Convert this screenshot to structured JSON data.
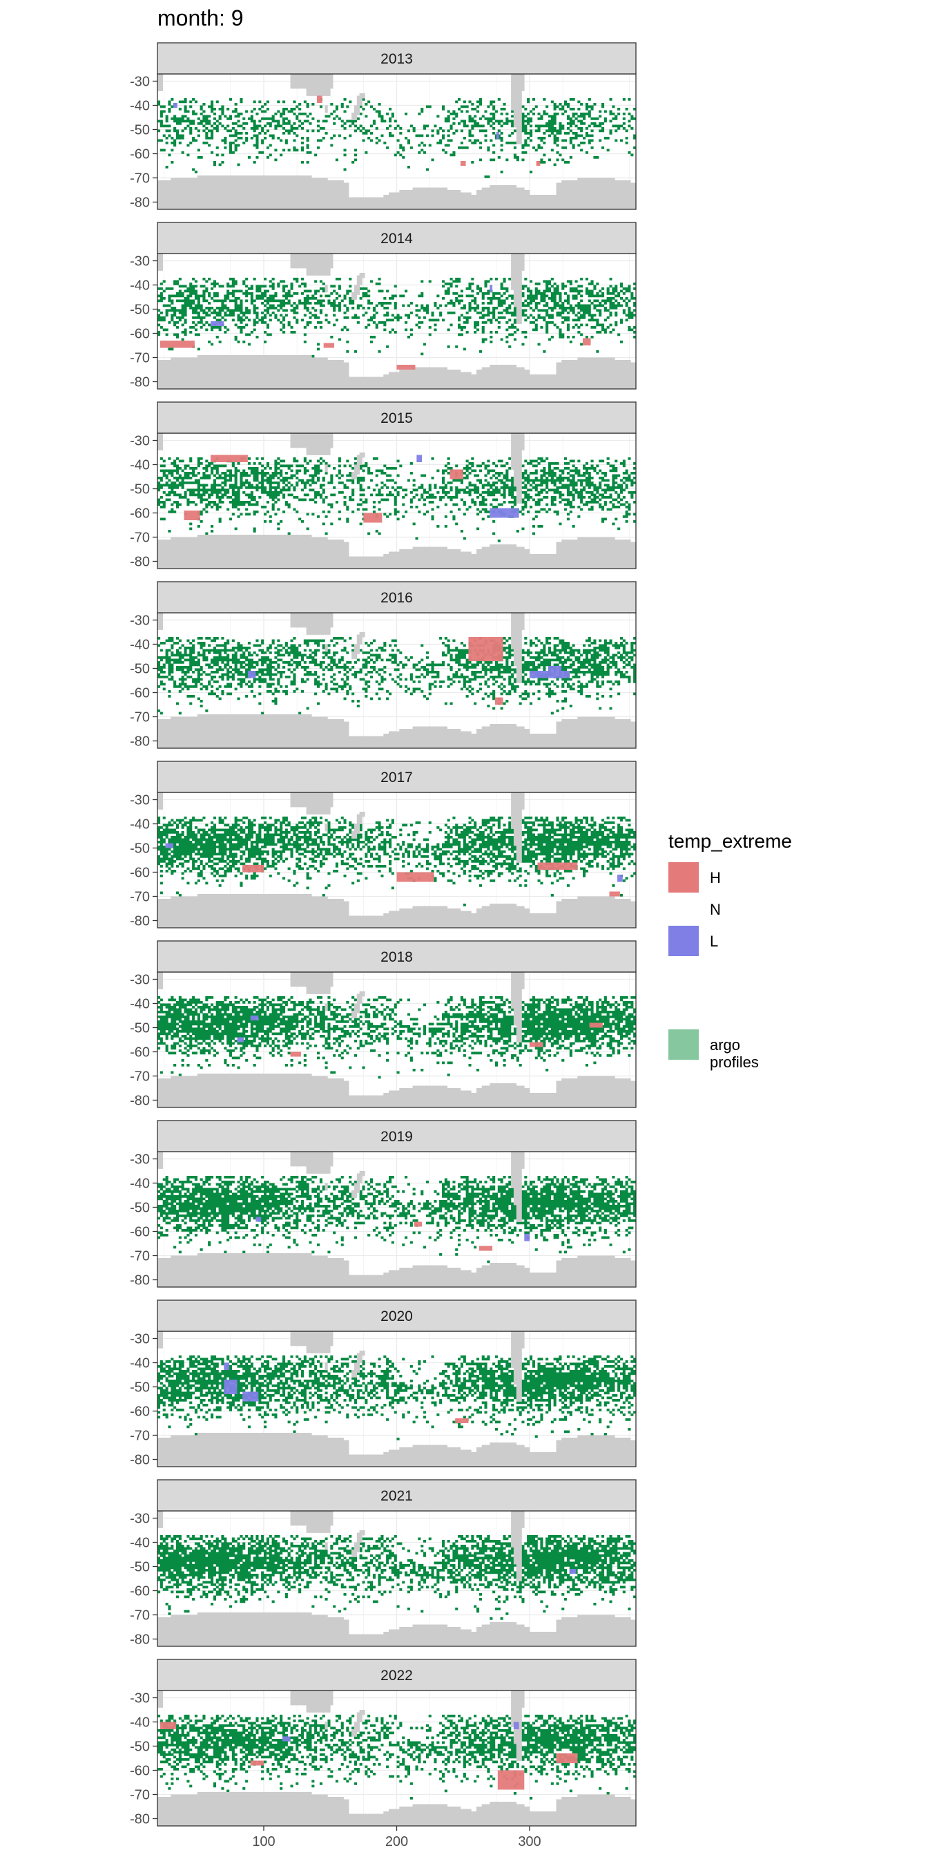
{
  "title": "month: 9",
  "chart_data": {
    "type": "heatmap",
    "facet_by": "year",
    "panels": [
      {
        "label": "2013",
        "highs": [
          [
            140,
            -39,
            4,
            3
          ],
          [
            248,
            -65,
            4,
            2
          ],
          [
            305,
            -65,
            3,
            2
          ]
        ],
        "lows": [
          [
            32,
            -41,
            3,
            2
          ],
          [
            275,
            -54,
            2,
            3
          ]
        ]
      },
      {
        "label": "2014",
        "highs": [
          [
            22,
            -66,
            26,
            3
          ],
          [
            145,
            -66,
            8,
            2
          ],
          [
            200,
            -75,
            14,
            2
          ],
          [
            340,
            -65,
            6,
            3
          ]
        ],
        "lows": [
          [
            60,
            -57,
            10,
            2
          ],
          [
            270,
            -43,
            2,
            3
          ]
        ]
      },
      {
        "label": "2015",
        "highs": [
          [
            60,
            -39,
            28,
            3
          ],
          [
            175,
            -64,
            14,
            4
          ],
          [
            240,
            -46,
            10,
            4
          ],
          [
            40,
            -63,
            12,
            4
          ]
        ],
        "lows": [
          [
            270,
            -62,
            22,
            4
          ],
          [
            215,
            -39,
            4,
            3
          ]
        ]
      },
      {
        "label": "2016",
        "highs": [
          [
            254,
            -47,
            26,
            10
          ],
          [
            274,
            -65,
            6,
            3
          ]
        ],
        "lows": [
          [
            300,
            -54,
            30,
            3
          ],
          [
            88,
            -54,
            6,
            3
          ],
          [
            314,
            -51,
            10,
            2
          ]
        ]
      },
      {
        "label": "2017",
        "highs": [
          [
            200,
            -64,
            28,
            4
          ],
          [
            306,
            -59,
            30,
            3
          ],
          [
            84,
            -60,
            16,
            3
          ],
          [
            360,
            -70,
            8,
            2
          ]
        ],
        "lows": [
          [
            26,
            -50,
            6,
            2
          ],
          [
            366,
            -64,
            4,
            3
          ]
        ]
      },
      {
        "label": "2018",
        "highs": [
          [
            120,
            -62,
            8,
            2
          ],
          [
            300,
            -58,
            10,
            2
          ],
          [
            345,
            -50,
            10,
            2
          ]
        ],
        "lows": [
          [
            80,
            -56,
            5,
            2
          ],
          [
            90,
            -47,
            6,
            2
          ]
        ]
      },
      {
        "label": "2019",
        "highs": [
          [
            262,
            -68,
            10,
            2
          ],
          [
            213,
            -58,
            6,
            2
          ]
        ],
        "lows": [
          [
            296,
            -64,
            4,
            3
          ],
          [
            94,
            -56,
            4,
            2
          ]
        ]
      },
      {
        "label": "2020",
        "highs": [
          [
            244,
            -65,
            10,
            2
          ]
        ],
        "lows": [
          [
            70,
            -53,
            10,
            6
          ],
          [
            84,
            -56,
            12,
            4
          ],
          [
            70,
            -43,
            4,
            3
          ]
        ]
      },
      {
        "label": "2021",
        "highs": [],
        "lows": [
          [
            330,
            -53,
            5,
            2
          ]
        ]
      },
      {
        "label": "2022",
        "highs": [
          [
            276,
            -68,
            20,
            8
          ],
          [
            320,
            -57,
            16,
            4
          ],
          [
            90,
            -58,
            10,
            2
          ],
          [
            22,
            -43,
            12,
            3
          ]
        ],
        "lows": [
          [
            288,
            -43,
            4,
            3
          ],
          [
            114,
            -48,
            6,
            2
          ]
        ]
      }
    ],
    "x": {
      "lim": [
        20,
        380
      ],
      "ticks": [
        100,
        200,
        300
      ]
    },
    "y": {
      "lim": [
        -83,
        -27
      ],
      "ticks": [
        -30,
        -40,
        -50,
        -60,
        -70,
        -80
      ]
    },
    "grid": true,
    "legend": {
      "title": "temp_extreme",
      "position": "right",
      "items": [
        {
          "label": "H",
          "color": "#e57a7a"
        },
        {
          "label": "N",
          "color": ""
        },
        {
          "label": "L",
          "color": "#7f7fe6"
        }
      ],
      "argo": {
        "label_line1": "argo",
        "label_line2": "profiles",
        "color": "#86c7a0"
      }
    },
    "colors": {
      "profiles": "#078a42",
      "land": "#cccccc",
      "strip_fill": "#d9d9d9",
      "grid": "#ebebeb",
      "high": "#e57a7a",
      "low": "#7f7fe6"
    }
  }
}
